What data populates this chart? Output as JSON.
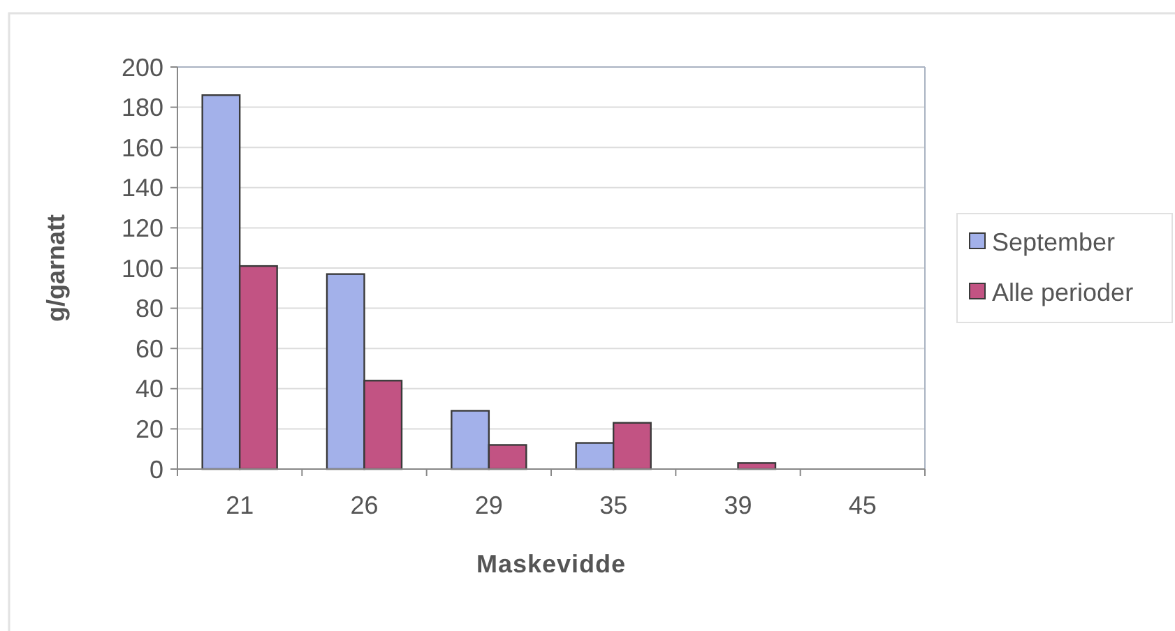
{
  "chart_data": {
    "type": "bar",
    "xlabel": "Maskevidde",
    "ylabel": "g/garnatt",
    "categories": [
      "21",
      "26",
      "29",
      "35",
      "39",
      "45"
    ],
    "series": [
      {
        "name": "September",
        "color": "#a3b1ea",
        "values": [
          186,
          97,
          29,
          13,
          null,
          null
        ]
      },
      {
        "name": "Alle perioder",
        "color": "#c25383",
        "values": [
          101,
          44,
          12,
          23,
          3,
          null
        ]
      }
    ],
    "ylim": [
      0,
      200
    ],
    "yticks": [
      0,
      20,
      40,
      60,
      80,
      100,
      120,
      140,
      160,
      180,
      200
    ],
    "grid": "y",
    "legend": "right"
  }
}
